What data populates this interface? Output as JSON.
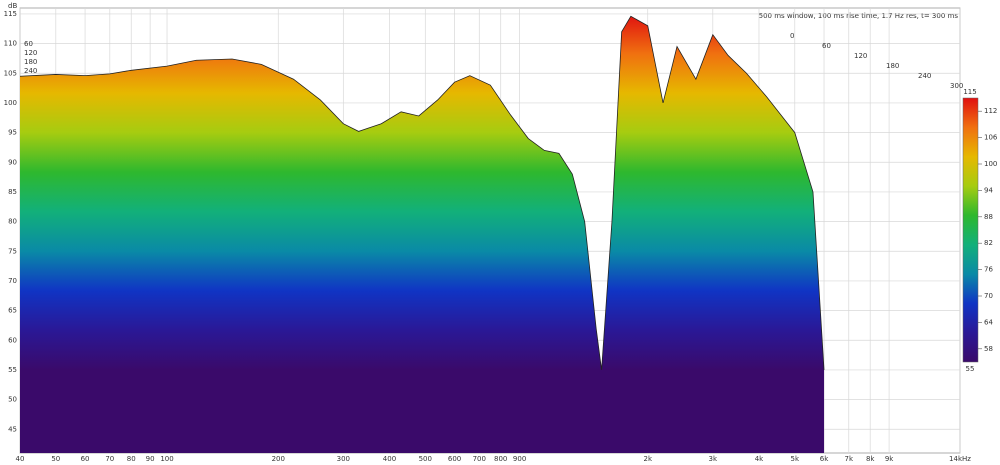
{
  "chart_data": {
    "type": "waterfall",
    "title": "500 ms window, 100 ms rise time, 1.7 Hz res, t= 300 ms",
    "y_label": "dB",
    "x": [
      40,
      50,
      60,
      70,
      80,
      100,
      120,
      150,
      180,
      220,
      260,
      300,
      330,
      380,
      430,
      480,
      540,
      600,
      660,
      750,
      850,
      950,
      1050,
      1150,
      1250,
      1350,
      1450,
      1500,
      1600,
      1700,
      1800,
      2000,
      2200,
      2400,
      2700,
      3000,
      3300,
      3700,
      4200,
      5000,
      5600,
      6000
    ],
    "values": [
      104.5,
      104.8,
      104.6,
      104.9,
      105.5,
      106.2,
      107.2,
      107.4,
      106.5,
      104,
      100.5,
      96.5,
      95.2,
      96.5,
      98.5,
      97.8,
      100.5,
      103.5,
      104.6,
      103,
      98,
      94,
      92,
      91.5,
      88,
      80,
      62,
      55,
      80,
      112,
      114.6,
      113,
      100,
      109.5,
      104,
      111.5,
      108,
      105,
      101,
      95,
      85,
      55
    ],
    "xlim": [
      40,
      14000
    ],
    "xticks": [
      40,
      50,
      60,
      70,
      80,
      90,
      100,
      200,
      300,
      400,
      500,
      600,
      700,
      800,
      900,
      {
        "value": 2000,
        "label": "2k"
      },
      {
        "value": 3000,
        "label": "3k"
      },
      {
        "value": 4000,
        "label": "4k"
      },
      {
        "value": 5000,
        "label": "5k"
      },
      {
        "value": 6000,
        "label": "6k"
      },
      {
        "value": 7000,
        "label": "7k"
      },
      {
        "value": 8000,
        "label": "8k"
      },
      {
        "value": 9000,
        "label": "9k"
      },
      {
        "value": 14000,
        "label": "14kHz"
      }
    ],
    "ylim": [
      41,
      116
    ],
    "yticks": [
      45,
      50,
      55,
      60,
      65,
      70,
      75,
      80,
      85,
      90,
      95,
      100,
      105,
      110,
      115
    ],
    "time_ticks": [
      0,
      60,
      120,
      180,
      240,
      300
    ],
    "log_x": true,
    "grid": true,
    "colorbar": {
      "range": [
        55,
        115
      ],
      "ticks": [
        58,
        64,
        70,
        76,
        82,
        88,
        94,
        100,
        106,
        112
      ],
      "colors": [
        "#3a0a6a",
        "#2a1896",
        "#1034c4",
        "#0a8aa6",
        "#12b07a",
        "#2eb82e",
        "#a6cc10",
        "#e6b800",
        "#f07010",
        "#e01010"
      ]
    }
  }
}
